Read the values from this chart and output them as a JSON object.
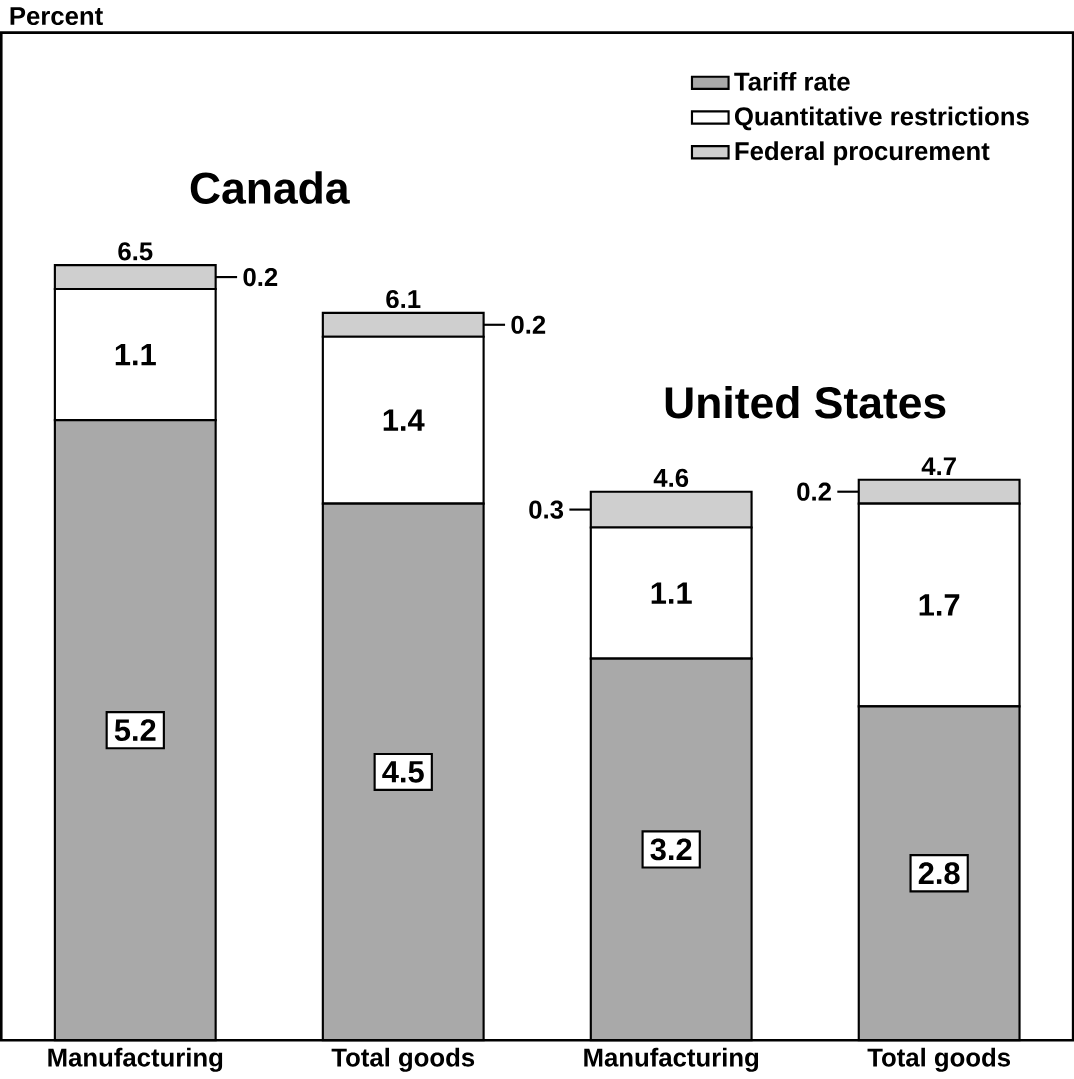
{
  "chart_data": {
    "type": "bar",
    "stacked": true,
    "categories": [
      "Manufacturing",
      "Total goods",
      "Manufacturing",
      "Total goods"
    ],
    "series": [
      {
        "name": "Tariff rate",
        "color": "#a9a9a9",
        "values": [
          5.2,
          4.5,
          3.2,
          2.8
        ]
      },
      {
        "name": "Quantitative restrictions",
        "color": "#ffffff",
        "values": [
          1.1,
          1.4,
          1.1,
          1.7
        ]
      },
      {
        "name": "Federal procurement",
        "color": "#cfcfcf",
        "values": [
          0.2,
          0.2,
          0.3,
          0.2
        ]
      }
    ],
    "totals": [
      "6.5",
      "6.1",
      "4.6",
      "4.7"
    ],
    "data_labels": true,
    "legend": "top right",
    "annotations": [
      "Canada",
      "United States",
      "Percent"
    ]
  }
}
